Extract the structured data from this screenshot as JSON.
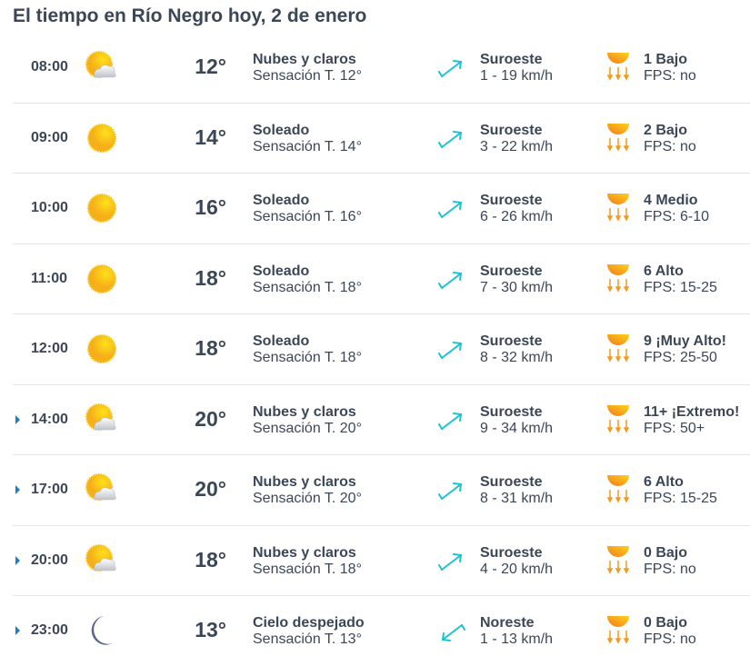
{
  "title": "El tiempo en Río Negro hoy, 2 de enero",
  "colors": {
    "text": "#3b4757",
    "wind": "#19c3d6",
    "uv": "#f39a1e",
    "sun": "#f9c21a",
    "caret": "#1a7fc1",
    "moon": "#5d6691"
  },
  "rows": [
    {
      "time": "08:00",
      "icon": "sun-cloud-icon",
      "expandable": false,
      "temp": "12°",
      "desc": "Nubes y claros",
      "feel": "Sensación T. 12°",
      "wind_dir": "Suroeste",
      "wind_speed": "1 - 19 km/h",
      "uv": "1 Bajo",
      "fps": "FPS: no"
    },
    {
      "time": "09:00",
      "icon": "sun-icon",
      "expandable": false,
      "temp": "14°",
      "desc": "Soleado",
      "feel": "Sensación T. 14°",
      "wind_dir": "Suroeste",
      "wind_speed": "3 - 22 km/h",
      "uv": "2 Bajo",
      "fps": "FPS: no"
    },
    {
      "time": "10:00",
      "icon": "sun-icon",
      "expandable": false,
      "temp": "16°",
      "desc": "Soleado",
      "feel": "Sensación T. 16°",
      "wind_dir": "Suroeste",
      "wind_speed": "6 - 26 km/h",
      "uv": "4 Medio",
      "fps": "FPS: 6-10"
    },
    {
      "time": "11:00",
      "icon": "sun-icon",
      "expandable": false,
      "temp": "18°",
      "desc": "Soleado",
      "feel": "Sensación T. 18°",
      "wind_dir": "Suroeste",
      "wind_speed": "7 - 30 km/h",
      "uv": "6 Alto",
      "fps": "FPS: 15-25"
    },
    {
      "time": "12:00",
      "icon": "sun-icon",
      "expandable": false,
      "temp": "18°",
      "desc": "Soleado",
      "feel": "Sensación T. 18°",
      "wind_dir": "Suroeste",
      "wind_speed": "8 - 32 km/h",
      "uv": "9 ¡Muy Alto!",
      "fps": "FPS: 25-50"
    },
    {
      "time": "14:00",
      "icon": "sun-cloud-icon",
      "expandable": true,
      "temp": "20°",
      "desc": "Nubes y claros",
      "feel": "Sensación T. 20°",
      "wind_dir": "Suroeste",
      "wind_speed": "9 - 34 km/h",
      "uv": "11+ ¡Extremo!",
      "fps": "FPS: 50+"
    },
    {
      "time": "17:00",
      "icon": "sun-cloud-icon",
      "expandable": true,
      "temp": "20°",
      "desc": "Nubes y claros",
      "feel": "Sensación T. 20°",
      "wind_dir": "Suroeste",
      "wind_speed": "8 - 31 km/h",
      "uv": "6 Alto",
      "fps": "FPS: 15-25"
    },
    {
      "time": "20:00",
      "icon": "sun-cloud-icon",
      "expandable": true,
      "temp": "18°",
      "desc": "Nubes y claros",
      "feel": "Sensación T. 18°",
      "wind_dir": "Suroeste",
      "wind_speed": "4 - 20 km/h",
      "uv": "0 Bajo",
      "fps": "FPS: no"
    },
    {
      "time": "23:00",
      "icon": "moon-icon",
      "expandable": true,
      "temp": "13°",
      "desc": "Cielo despejado",
      "feel": "Sensación T. 13°",
      "wind_dir": "Noreste",
      "wind_speed": "1 - 13 km/h",
      "uv": "0 Bajo",
      "fps": "FPS: no"
    }
  ]
}
